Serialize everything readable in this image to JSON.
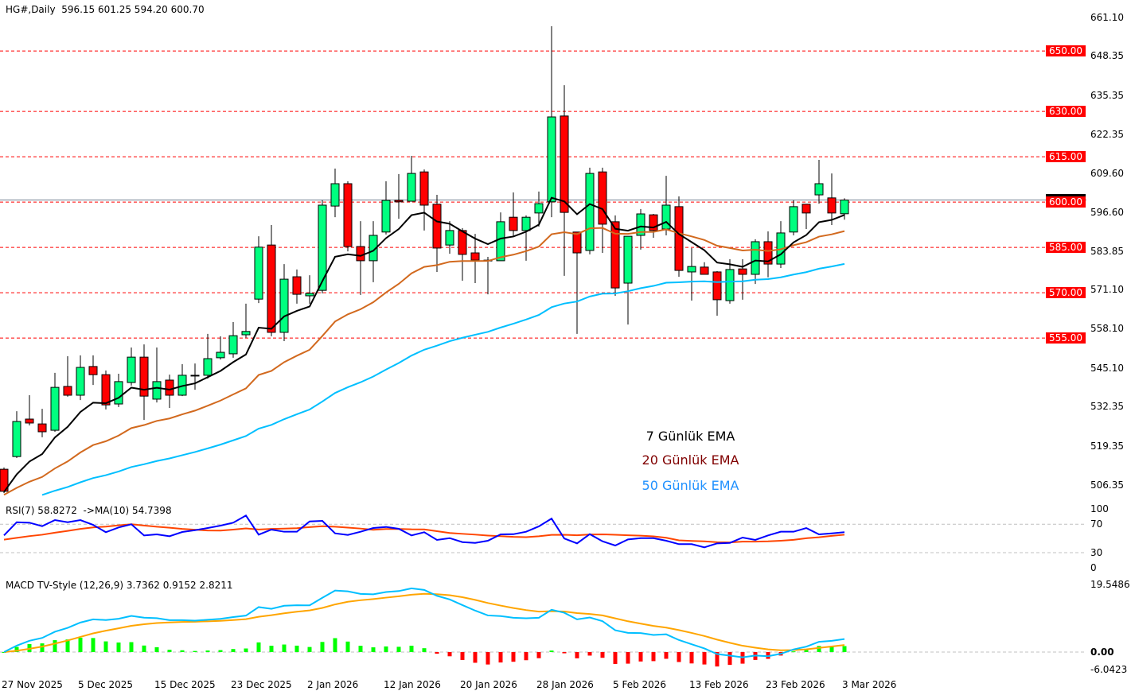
{
  "header": {
    "symbol": "HG#,Daily",
    "ohlc": "596.15 601.25 594.20 600.70"
  },
  "colors": {
    "bull": "#00ff7f",
    "bear": "#ff0000",
    "ema7": "#000000",
    "ema20": "#d2691e",
    "ema50": "#00bfff",
    "level": "#ff0000",
    "rsi": "#0000ff",
    "rsi_ma": "#ff4500",
    "macd": "#00bfff",
    "signal": "#ffa500",
    "hist_pos": "#00ff00",
    "hist_neg": "#ff0000"
  },
  "price_axis": [
    "661.10",
    "648.35",
    "635.35",
    "622.35",
    "609.60",
    "596.60",
    "583.85",
    "571.10",
    "558.10",
    "545.10",
    "532.35",
    "519.35",
    "506.35"
  ],
  "levels": [
    "650.00",
    "630.00",
    "615.00",
    "600.00",
    "585.00",
    "570.00",
    "555.00"
  ],
  "current_price": "600.70",
  "legend": {
    "ema7": "7 Günlük EMA",
    "ema20": "20 Günlük EMA",
    "ema50": "50 Günlük EMA"
  },
  "ema_seed": {
    "ema7": 504,
    "ema20": 503,
    "ema50": 500
  },
  "rsi_panel": {
    "label": "RSI(7) 58.8272  ->MA(10) 54.7398",
    "axis": [
      "100",
      "70",
      "30",
      "0"
    ],
    "ma_start": 47.7
  },
  "macd_panel": {
    "label": "MACD TV-Style (12,26,9) 3.7362 0.9152 2.8211",
    "axis": [
      "19.5486",
      "0.00",
      "-6.0423"
    ],
    "max": 19.5486,
    "min": -6.0423
  },
  "dates": [
    "27 Nov 2025",
    "5 Dec 2025",
    "15 Dec 2025",
    "23 Dec 2025",
    "2 Jan 2026",
    "12 Jan 2026",
    "20 Jan 2026",
    "28 Jan 2026",
    "5 Feb 2026",
    "13 Feb 2026",
    "23 Feb 2026",
    "3 Mar 2026"
  ],
  "chart_data": {
    "type": "candlestick",
    "title": "HG#,Daily",
    "ylim": [
      506.35,
      661.1
    ],
    "candle_format": [
      "open",
      "high",
      "low",
      "close"
    ],
    "candles": [
      [
        511.6,
        512.2,
        503.7,
        504.3
      ],
      [
        515.8,
        530.8,
        515.3,
        527.4
      ],
      [
        528.2,
        536.1,
        526.1,
        526.9
      ],
      [
        526.6,
        531.6,
        522.2,
        524.0
      ],
      [
        524.5,
        543.5,
        524.0,
        538.7
      ],
      [
        539.0,
        549.0,
        535.6,
        536.1
      ],
      [
        536.1,
        549.3,
        534.5,
        545.3
      ],
      [
        545.6,
        549.3,
        539.5,
        542.9
      ],
      [
        542.9,
        544.3,
        531.4,
        532.9
      ],
      [
        533.2,
        543.2,
        532.2,
        540.6
      ],
      [
        540.3,
        551.9,
        539.3,
        548.7
      ],
      [
        548.7,
        552.9,
        527.9,
        535.8
      ],
      [
        534.8,
        551.9,
        533.7,
        540.6
      ],
      [
        541.1,
        542.9,
        531.9,
        536.1
      ],
      [
        536.1,
        546.4,
        535.8,
        542.7
      ],
      [
        542.7,
        546.6,
        537.9,
        542.7
      ],
      [
        542.7,
        556.4,
        541.6,
        548.2
      ],
      [
        548.5,
        555.6,
        547.9,
        550.3
      ],
      [
        549.8,
        560.3,
        548.5,
        555.8
      ],
      [
        556.1,
        566.4,
        555.1,
        557.2
      ],
      [
        567.9,
        588.7,
        566.6,
        585.1
      ],
      [
        585.8,
        592.4,
        555.6,
        556.9
      ],
      [
        556.9,
        579.5,
        554.0,
        574.5
      ],
      [
        575.3,
        577.7,
        566.4,
        569.5
      ],
      [
        569.0,
        575.8,
        566.4,
        569.8
      ],
      [
        570.8,
        600.6,
        569.8,
        599.0
      ],
      [
        598.7,
        611.1,
        595.0,
        606.1
      ],
      [
        606.1,
        606.9,
        583.7,
        585.3
      ],
      [
        585.3,
        593.7,
        569.3,
        580.6
      ],
      [
        580.6,
        593.7,
        573.5,
        589.0
      ],
      [
        590.1,
        606.9,
        589.3,
        600.6
      ],
      [
        600.6,
        609.3,
        594.5,
        600.1
      ],
      [
        600.3,
        615.3,
        600.3,
        609.5
      ],
      [
        610.0,
        610.8,
        590.6,
        599.0
      ],
      [
        599.3,
        602.4,
        576.9,
        584.8
      ],
      [
        585.8,
        593.7,
        582.9,
        590.6
      ],
      [
        590.6,
        591.4,
        574.0,
        582.7
      ],
      [
        583.2,
        589.5,
        573.2,
        580.8
      ],
      [
        580.8,
        581.9,
        569.5,
        580.6
      ],
      [
        580.6,
        596.6,
        580.6,
        593.5
      ],
      [
        595.0,
        603.2,
        588.7,
        590.6
      ],
      [
        590.6,
        595.6,
        580.6,
        595.0
      ],
      [
        596.4,
        603.5,
        591.9,
        599.5
      ],
      [
        600.1,
        658.2,
        595.0,
        628.2
      ],
      [
        628.5,
        638.7,
        575.6,
        596.6
      ],
      [
        590.1,
        590.1,
        556.4,
        583.2
      ],
      [
        584.0,
        611.4,
        582.7,
        609.5
      ],
      [
        610.0,
        611.4,
        583.2,
        592.7
      ],
      [
        593.5,
        595.6,
        569.0,
        571.6
      ],
      [
        573.2,
        588.7,
        559.5,
        588.7
      ],
      [
        589.0,
        597.7,
        584.3,
        596.1
      ],
      [
        595.8,
        596.1,
        588.2,
        590.6
      ],
      [
        591.1,
        608.7,
        589.0,
        599.0
      ],
      [
        598.5,
        601.9,
        575.3,
        577.4
      ],
      [
        576.9,
        584.8,
        567.4,
        578.7
      ],
      [
        578.5,
        580.1,
        576.1,
        576.1
      ],
      [
        576.9,
        577.2,
        562.4,
        567.7
      ],
      [
        567.4,
        581.1,
        566.4,
        577.7
      ],
      [
        577.9,
        581.1,
        567.7,
        576.1
      ],
      [
        576.1,
        587.7,
        572.9,
        586.9
      ],
      [
        586.9,
        590.3,
        575.1,
        579.5
      ],
      [
        579.5,
        593.7,
        578.2,
        589.8
      ],
      [
        590.1,
        600.6,
        589.0,
        598.5
      ],
      [
        599.3,
        599.3,
        591.1,
        596.4
      ],
      [
        602.4,
        614.0,
        599.5,
        606.1
      ],
      [
        601.4,
        609.5,
        592.4,
        596.4
      ],
      [
        596.15,
        601.25,
        594.2,
        600.7
      ]
    ],
    "rsi": [
      54.3,
      72.9,
      72.2,
      67.3,
      75.9,
      72.9,
      75.9,
      69.2,
      58.8,
      65.5,
      70,
      54.3,
      55.8,
      53.2,
      59.1,
      61.7,
      64.7,
      68.1,
      72.2,
      82.3,
      55.4,
      62.5,
      59.5,
      59.5,
      74,
      74.8,
      57.2,
      55,
      59.5,
      64.7,
      66.2,
      63.6,
      54.3,
      58.8,
      48,
      50.5,
      44.9,
      43.8,
      46.8,
      55.8,
      56,
      59.5,
      67,
      78,
      50,
      43.1,
      56.1,
      46,
      40.1,
      48.7,
      50.5,
      50.5,
      46.8,
      42,
      42,
      37.5,
      43.1,
      43.8,
      51.3,
      48,
      54.3,
      59.5,
      59.5,
      64.7,
      55.8,
      57.2,
      58.8
    ]
  }
}
